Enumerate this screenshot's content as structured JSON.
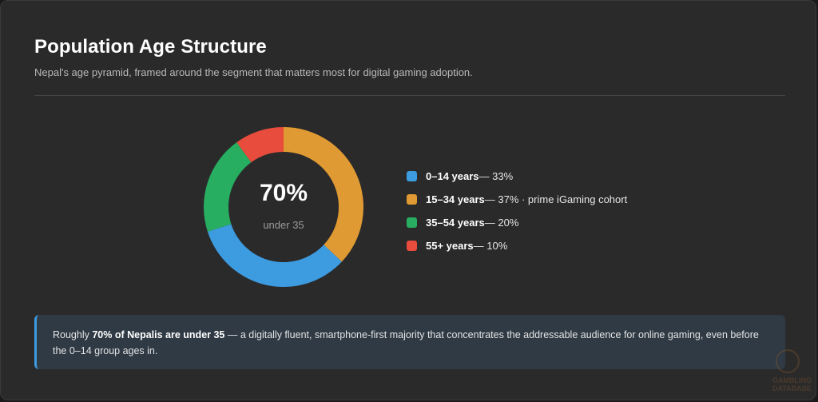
{
  "header": {
    "title": "Population Age Structure",
    "subtitle": "Nepal's age pyramid, framed around the segment that matters most for digital gaming adoption."
  },
  "center": {
    "value": "70%",
    "label": "under 35"
  },
  "chart_data": {
    "type": "pie",
    "donut": true,
    "slices": [
      {
        "label": "0–14 years",
        "value": 33,
        "color": "#3d9be0",
        "note": ""
      },
      {
        "label": "15–34 years",
        "value": 37,
        "color": "#e09a33",
        "note": " · prime iGaming cohort"
      },
      {
        "label": "35–54 years",
        "value": 20,
        "color": "#27ae60",
        "note": ""
      },
      {
        "label": "55+ years",
        "value": 10,
        "color": "#e74c3c",
        "note": ""
      }
    ],
    "draw_order": [
      1,
      0,
      2,
      3
    ],
    "legend_position": "right"
  },
  "legend": {
    "items": [
      {
        "label": "0–14 years",
        "text": " — 33%"
      },
      {
        "label": "15–34 years",
        "text": " — 37% · prime iGaming cohort"
      },
      {
        "label": "35–54 years",
        "text": " — 20%"
      },
      {
        "label": "55+ years",
        "text": " — 10%"
      }
    ]
  },
  "callout": {
    "prefix": "Roughly ",
    "bold": "70% of Nepalis are under 35",
    "suffix": " — a digitally fluent, smartphone-first majority that concentrates the addressable audience for online gaming, even before the 0–14 group ages in."
  },
  "watermark": {
    "line1": "GAMBLING",
    "line2": "DATABASE"
  }
}
